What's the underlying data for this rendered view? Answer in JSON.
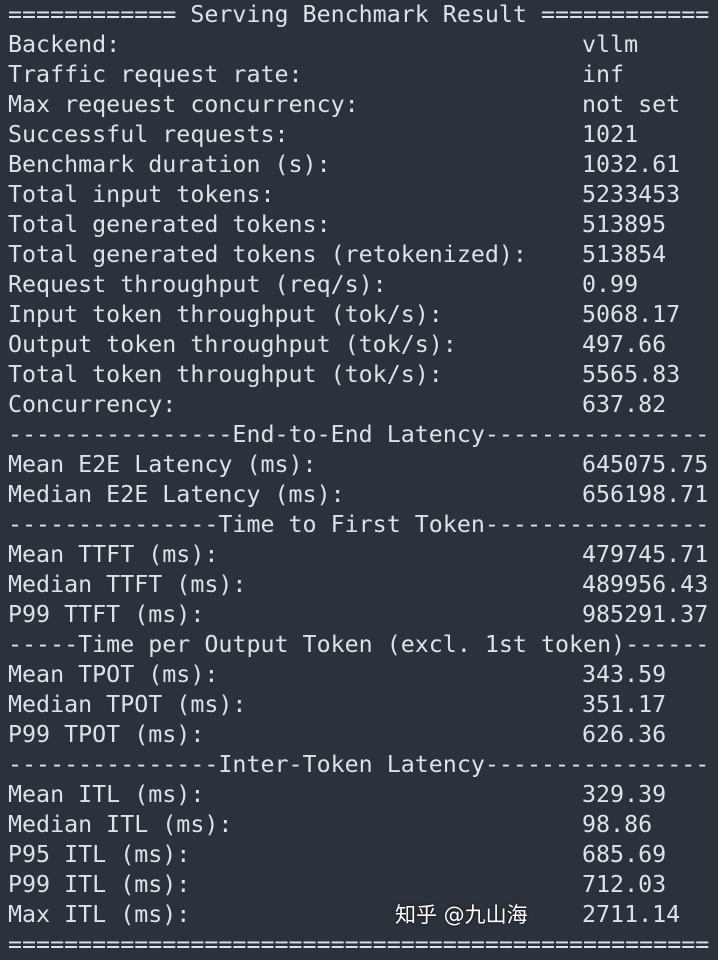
{
  "header": "============ Serving Benchmark Result ============",
  "general": [
    {
      "label": "Backend:",
      "value": "vllm"
    },
    {
      "label": "Traffic request rate:",
      "value": "inf"
    },
    {
      "label": "Max reqeuest concurrency:",
      "value": "not set"
    },
    {
      "label": "Successful requests:",
      "value": "1021"
    },
    {
      "label": "Benchmark duration (s):",
      "value": "1032.61"
    },
    {
      "label": "Total input tokens:",
      "value": "5233453"
    },
    {
      "label": "Total generated tokens:",
      "value": "513895"
    },
    {
      "label": "Total generated tokens (retokenized):",
      "value": "513854"
    },
    {
      "label": "Request throughput (req/s):",
      "value": "0.99"
    },
    {
      "label": "Input token throughput (tok/s):",
      "value": "5068.17"
    },
    {
      "label": "Output token throughput (tok/s):",
      "value": "497.66"
    },
    {
      "label": "Total token throughput (tok/s):",
      "value": "5565.83"
    },
    {
      "label": "Concurrency:",
      "value": "637.82"
    }
  ],
  "e2e_header": "----------------End-to-End Latency----------------",
  "e2e": [
    {
      "label": "Mean E2E Latency (ms):",
      "value": "645075.75"
    },
    {
      "label": "Median E2E Latency (ms):",
      "value": "656198.71"
    }
  ],
  "ttft_header": "---------------Time to First Token----------------",
  "ttft": [
    {
      "label": "Mean TTFT (ms):",
      "value": "479745.71"
    },
    {
      "label": "Median TTFT (ms):",
      "value": "489956.43"
    },
    {
      "label": "P99 TTFT (ms):",
      "value": "985291.37"
    }
  ],
  "tpot_header": "-----Time per Output Token (excl. 1st token)------",
  "tpot": [
    {
      "label": "Mean TPOT (ms):",
      "value": "343.59"
    },
    {
      "label": "Median TPOT (ms):",
      "value": "351.17"
    },
    {
      "label": "P99 TPOT (ms):",
      "value": "626.36"
    }
  ],
  "itl_header": "---------------Inter-Token Latency----------------",
  "itl": [
    {
      "label": "Mean ITL (ms):",
      "value": "329.39"
    },
    {
      "label": "Median ITL (ms):",
      "value": "98.86"
    },
    {
      "label": "P95 ITL (ms):",
      "value": "685.69"
    },
    {
      "label": "P99 ITL (ms):",
      "value": "712.03"
    },
    {
      "label": "Max ITL (ms):",
      "value": "2711.14"
    }
  ],
  "footer": "==================================================",
  "watermark": "知乎 @九山海",
  "colors": {
    "background": "#2b323b",
    "text": "#dde2e8"
  }
}
